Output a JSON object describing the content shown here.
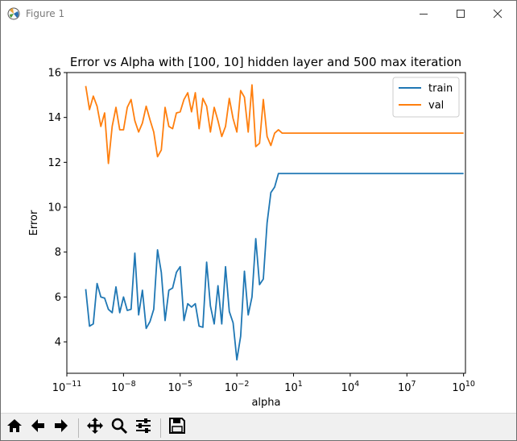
{
  "window": {
    "title": "Figure 1",
    "icons": {
      "app": "matplotlib-figure-icon",
      "minimize": "minimize-icon",
      "maximize": "maximize-icon",
      "close": "close-icon"
    }
  },
  "toolbar": {
    "buttons": [
      {
        "name": "home-button",
        "icon": "home-icon"
      },
      {
        "name": "back-button",
        "icon": "arrow-left-icon"
      },
      {
        "name": "forward-button",
        "icon": "arrow-right-icon"
      },
      {
        "name": "pan-button",
        "icon": "move-icon"
      },
      {
        "name": "zoom-button",
        "icon": "magnifier-icon"
      },
      {
        "name": "configure-subplots-button",
        "icon": "sliders-icon"
      },
      {
        "name": "save-button",
        "icon": "floppy-disk-icon"
      }
    ],
    "status": ""
  },
  "chart_data": {
    "type": "line",
    "title": "Error vs Alpha with [100, 10] hidden layer and 500 max iteration",
    "xlabel": "alpha",
    "ylabel": "Error",
    "xscale": "log",
    "xlim_exp": [
      -11,
      10.1
    ],
    "ylim": [
      2.6,
      16.0
    ],
    "x_ticks": [
      {
        "exp": -11,
        "label": "10",
        "sup": "−11"
      },
      {
        "exp": -8,
        "label": "10",
        "sup": "−8"
      },
      {
        "exp": -5,
        "label": "10",
        "sup": "−5"
      },
      {
        "exp": -2,
        "label": "10",
        "sup": "−2"
      },
      {
        "exp": 1,
        "label": "10",
        "sup": "1"
      },
      {
        "exp": 4,
        "label": "10",
        "sup": "4"
      },
      {
        "exp": 7,
        "label": "10",
        "sup": "7"
      },
      {
        "exp": 10,
        "label": "10",
        "sup": "10"
      }
    ],
    "y_ticks": [
      4,
      6,
      8,
      10,
      12,
      14,
      16
    ],
    "legend": {
      "position": "upper right",
      "entries": [
        "train",
        "val"
      ]
    },
    "colors": {
      "train": "#1f77b4",
      "val": "#ff7f0e"
    },
    "grid": false,
    "series": [
      {
        "name": "train",
        "x_exp": [
          -10,
          -9.8,
          -9.6,
          -9.4,
          -9.2,
          -9,
          -8.8,
          -8.6,
          -8.4,
          -8.2,
          -8,
          -7.8,
          -7.6,
          -7.4,
          -7.2,
          -7,
          -6.8,
          -6.6,
          -6.4,
          -6.2,
          -6,
          -5.8,
          -5.6,
          -5.4,
          -5.2,
          -5,
          -4.8,
          -4.6,
          -4.4,
          -4.2,
          -4,
          -3.8,
          -3.6,
          -3.4,
          -3.2,
          -3,
          -2.8,
          -2.6,
          -2.4,
          -2.2,
          -2,
          -1.8,
          -1.6,
          -1.4,
          -1.2,
          -1,
          -0.8,
          -0.6,
          -0.4,
          -0.2,
          0,
          0.2,
          0.4,
          0.6,
          0.8,
          1,
          10
        ],
        "y": [
          6.35,
          4.7,
          4.8,
          6.6,
          6.0,
          5.95,
          5.45,
          5.3,
          6.45,
          5.3,
          6.0,
          5.4,
          5.45,
          7.95,
          5.2,
          6.3,
          4.6,
          4.9,
          5.45,
          8.1,
          7.1,
          4.95,
          6.3,
          6.4,
          7.1,
          7.35,
          4.95,
          5.7,
          5.55,
          5.7,
          4.7,
          4.65,
          7.55,
          5.6,
          4.8,
          6.5,
          4.8,
          7.35,
          5.35,
          4.85,
          3.2,
          4.25,
          7.15,
          5.2,
          6.0,
          8.6,
          6.55,
          6.8,
          9.3,
          10.65,
          10.9,
          11.5,
          11.5,
          11.5,
          11.5,
          11.5,
          11.5
        ]
      },
      {
        "name": "val",
        "x_exp": [
          -10,
          -9.8,
          -9.6,
          -9.4,
          -9.2,
          -9,
          -8.8,
          -8.6,
          -8.4,
          -8.2,
          -8,
          -7.8,
          -7.6,
          -7.4,
          -7.2,
          -7,
          -6.8,
          -6.6,
          -6.4,
          -6.2,
          -6,
          -5.8,
          -5.6,
          -5.4,
          -5.2,
          -5,
          -4.8,
          -4.6,
          -4.4,
          -4.2,
          -4,
          -3.8,
          -3.6,
          -3.4,
          -3.2,
          -3,
          -2.8,
          -2.6,
          -2.4,
          -2.2,
          -2,
          -1.8,
          -1.6,
          -1.4,
          -1.2,
          -1,
          -0.8,
          -0.6,
          -0.4,
          -0.2,
          0,
          0.2,
          0.4,
          0.6,
          0.8,
          1,
          10
        ],
        "y": [
          15.4,
          14.35,
          14.95,
          14.5,
          13.6,
          14.2,
          11.95,
          13.6,
          14.45,
          13.45,
          13.45,
          14.45,
          14.8,
          13.85,
          13.35,
          13.75,
          14.5,
          13.9,
          13.35,
          12.25,
          12.55,
          14.45,
          13.6,
          13.5,
          14.2,
          14.25,
          14.8,
          15.1,
          14.25,
          15.1,
          13.5,
          14.85,
          14.5,
          13.35,
          14.45,
          13.85,
          13.15,
          13.6,
          14.85,
          13.95,
          13.35,
          15.2,
          14.9,
          13.35,
          15.45,
          12.7,
          12.85,
          14.8,
          13.15,
          12.75,
          13.3,
          13.45,
          13.3,
          13.3,
          13.3,
          13.3,
          13.3
        ]
      }
    ]
  }
}
